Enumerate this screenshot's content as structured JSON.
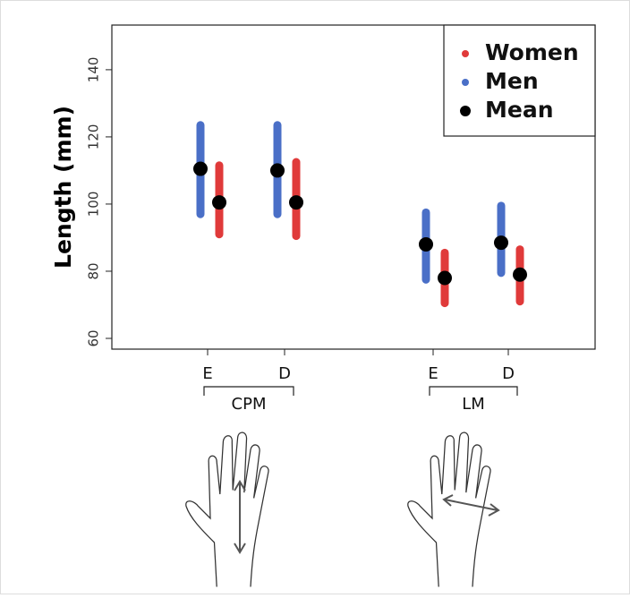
{
  "chart_data": {
    "type": "strip",
    "ylabel": "Length (mm)",
    "categories": [
      "E",
      "D",
      "E",
      "D"
    ],
    "groups": [
      "CPM",
      "LM"
    ],
    "ylim": [
      56.8,
      153.3
    ],
    "yticks": [
      60,
      80,
      100,
      120,
      140
    ],
    "series": [
      {
        "name": "Women",
        "color": "#e03a3a",
        "low": [
          91,
          90.5,
          70.5,
          71
        ],
        "high": [
          111.5,
          112.5,
          85.5,
          86.5
        ],
        "mean": [
          100.5,
          100.5,
          78,
          79
        ]
      },
      {
        "name": "Men",
        "color": "#4a6fc7",
        "low": [
          97,
          97,
          77.5,
          79.5
        ],
        "high": [
          123.5,
          123.5,
          97.5,
          99.5
        ],
        "mean": [
          110.5,
          110,
          88,
          88.5
        ]
      }
    ],
    "mean_legend": {
      "name": "Mean",
      "color": "#000000"
    },
    "legend": "top-right"
  }
}
